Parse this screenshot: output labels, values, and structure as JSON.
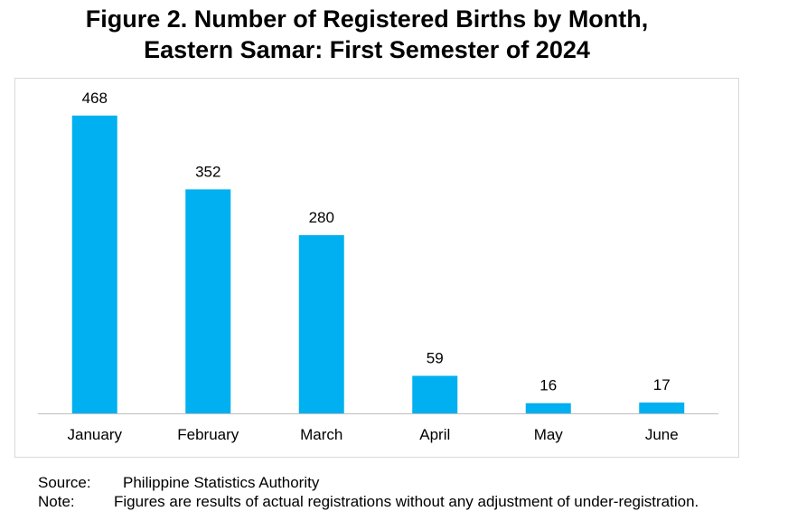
{
  "title": {
    "line1": "Figure 2. Number of Registered Births by Month,",
    "line2": "Eastern Samar: First Semester of 2024"
  },
  "chart_data": {
    "type": "bar",
    "categories": [
      "January",
      "February",
      "March",
      "April",
      "May",
      "June"
    ],
    "values": [
      468,
      352,
      280,
      59,
      16,
      17
    ],
    "title": "Figure 2. Number of Registered Births by Month, Eastern Samar: First Semester of 2024",
    "xlabel": "",
    "ylabel": "",
    "ylim": [
      0,
      500
    ],
    "grid": false,
    "legend": "none",
    "bar_color": "#00B0F0",
    "data_labels": true
  },
  "footer": {
    "source_label": "Source:",
    "source_value": "Philippine Statistics Authority",
    "note_label": "Note:",
    "note_value": "Figures are results of actual registrations without any adjustment of under-registration."
  }
}
